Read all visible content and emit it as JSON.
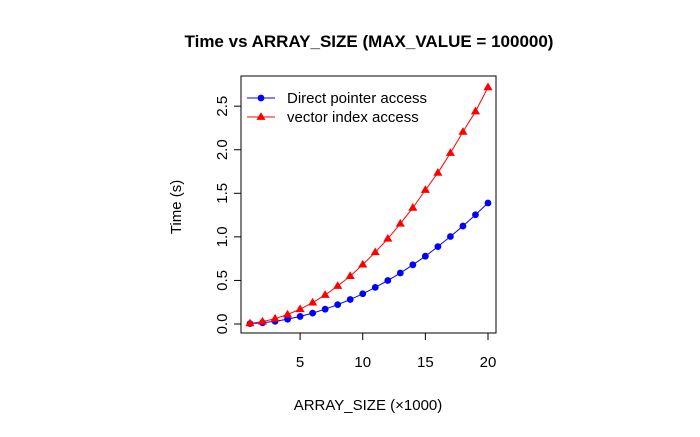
{
  "chart_data": {
    "type": "line",
    "title": "Time vs ARRAY_SIZE (MAX_VALUE = 100000)",
    "xlabel": "ARRAY_SIZE (×1000)",
    "ylabel": "Time (s)",
    "xlim": [
      1,
      20
    ],
    "ylim": [
      0,
      2.72
    ],
    "x_ticks": [
      "5",
      "10",
      "15",
      "20"
    ],
    "y_ticks": [
      "0.0",
      "0.5",
      "1.0",
      "1.5",
      "2.0",
      "2.5"
    ],
    "grid": false,
    "legend_position": "top-left",
    "x": [
      1,
      2,
      3,
      4,
      5,
      6,
      7,
      8,
      9,
      10,
      11,
      12,
      13,
      14,
      15,
      16,
      17,
      18,
      19,
      20
    ],
    "series": [
      {
        "name": "Direct pointer access",
        "color": "#0000ff",
        "marker": "circle",
        "values": [
          0.004,
          0.014,
          0.031,
          0.055,
          0.087,
          0.125,
          0.17,
          0.222,
          0.281,
          0.347,
          0.42,
          0.499,
          0.585,
          0.679,
          0.778,
          0.888,
          1.004,
          1.124,
          1.254,
          1.389
        ]
      },
      {
        "name": "vector index access",
        "color": "#ff0000",
        "marker": "triangle",
        "values": [
          0.007,
          0.027,
          0.061,
          0.109,
          0.17,
          0.245,
          0.333,
          0.436,
          0.55,
          0.681,
          0.823,
          0.978,
          1.151,
          1.333,
          1.538,
          1.735,
          1.962,
          2.205,
          2.439,
          2.716
        ]
      }
    ]
  }
}
